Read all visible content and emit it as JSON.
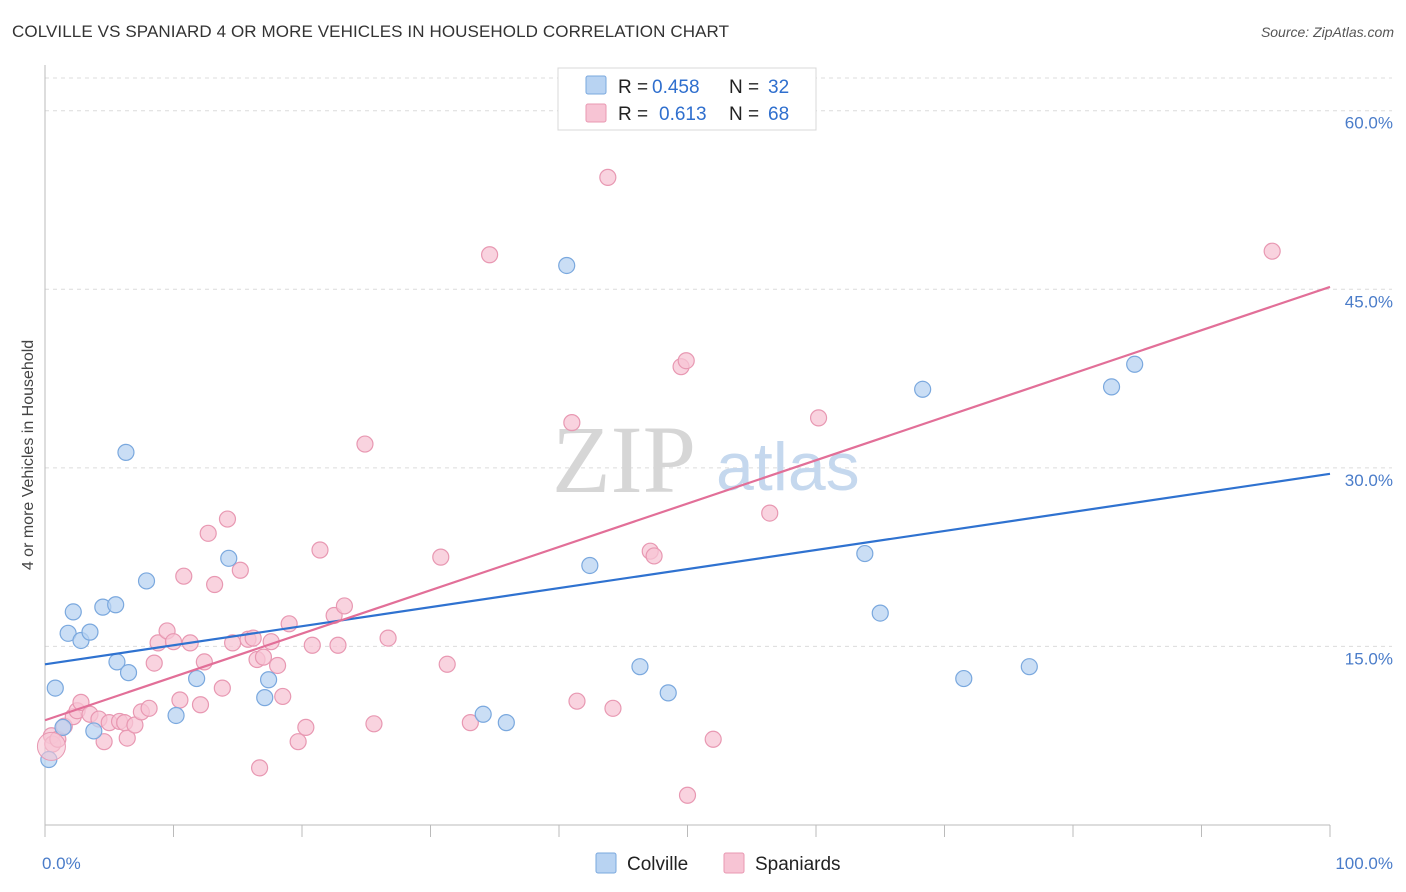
{
  "header": {
    "title": "COLVILLE VS SPANIARD 4 OR MORE VEHICLES IN HOUSEHOLD CORRELATION CHART",
    "source": "Source: ZipAtlas.com"
  },
  "legend": {
    "rows": [
      {
        "r_label": "R =",
        "r_value": "0.458",
        "n_label": "N =",
        "n_value": "32"
      },
      {
        "r_label": "R =",
        "r_value": "0.613",
        "n_label": "N =",
        "n_value": "68"
      }
    ]
  },
  "bottom_legend": [
    "Colville",
    "Spaniards"
  ],
  "watermark": {
    "zip": "ZIP",
    "atlas": "atlas"
  },
  "colors": {
    "colville_fill": "#b8d3f2",
    "colville_stroke": "#7aa8de",
    "colville_line": "#2f72d0",
    "spaniards_fill": "#f7c4d4",
    "spaniards_stroke": "#e898b2",
    "spaniards_line": "#e26f98",
    "tick_label": "#4a7cc9",
    "grid": "#dcdcdc"
  },
  "chart_data": {
    "type": "scatter",
    "title": "COLVILLE VS SPANIARD 4 OR MORE VEHICLES IN HOUSEHOLD CORRELATION CHART",
    "xlabel": "",
    "ylabel": "4 or more Vehicles in Household",
    "xlim": [
      0,
      100
    ],
    "ylim": [
      0,
      63
    ],
    "x_tick_labels": [
      "0.0%",
      "100.0%"
    ],
    "y_ticks": [
      15,
      30,
      45,
      60
    ],
    "y_tick_labels": [
      "15.0%",
      "30.0%",
      "45.0%",
      "60.0%"
    ],
    "grid": true,
    "legend_position": "top-center",
    "series": [
      {
        "name": "Colville",
        "r": 0.458,
        "n": 32,
        "trend": {
          "x": [
            0,
            100
          ],
          "y": [
            13.5,
            29.5
          ]
        },
        "points": [
          [
            0.3,
            5.5
          ],
          [
            0.8,
            11.5
          ],
          [
            1.4,
            8.2
          ],
          [
            1.8,
            16.1
          ],
          [
            2.2,
            17.9
          ],
          [
            2.8,
            15.5
          ],
          [
            3.5,
            16.2
          ],
          [
            3.8,
            7.9
          ],
          [
            4.5,
            18.3
          ],
          [
            5.5,
            18.5
          ],
          [
            5.6,
            13.7
          ],
          [
            6.5,
            12.8
          ],
          [
            6.3,
            31.3
          ],
          [
            7.9,
            20.5
          ],
          [
            10.2,
            9.2
          ],
          [
            11.8,
            12.3
          ],
          [
            14.3,
            22.4
          ],
          [
            17.1,
            10.7
          ],
          [
            17.4,
            12.2
          ],
          [
            34.1,
            9.3
          ],
          [
            35.9,
            8.6
          ],
          [
            40.6,
            47.0
          ],
          [
            42.4,
            21.8
          ],
          [
            46.3,
            13.3
          ],
          [
            48.5,
            11.1
          ],
          [
            63.8,
            22.8
          ],
          [
            65.0,
            17.8
          ],
          [
            68.3,
            36.6
          ],
          [
            71.5,
            12.3
          ],
          [
            76.6,
            13.3
          ],
          [
            83.0,
            36.8
          ],
          [
            84.8,
            38.7
          ]
        ]
      },
      {
        "name": "Spaniards",
        "r": 0.613,
        "n": 68,
        "trend": {
          "x": [
            0,
            100
          ],
          "y": [
            8.8,
            45.2
          ]
        },
        "points": [
          [
            0.5,
            7.5
          ],
          [
            0.6,
            6.8
          ],
          [
            1.0,
            7.2
          ],
          [
            1.5,
            8.3
          ],
          [
            2.2,
            9.1
          ],
          [
            2.5,
            9.6
          ],
          [
            2.8,
            10.3
          ],
          [
            3.5,
            9.3
          ],
          [
            4.2,
            8.9
          ],
          [
            4.6,
            7.0
          ],
          [
            5.0,
            8.6
          ],
          [
            5.8,
            8.7
          ],
          [
            6.4,
            7.3
          ],
          [
            6.2,
            8.6
          ],
          [
            7.0,
            8.4
          ],
          [
            7.5,
            9.5
          ],
          [
            8.1,
            9.8
          ],
          [
            8.5,
            13.6
          ],
          [
            8.8,
            15.3
          ],
          [
            9.5,
            16.3
          ],
          [
            10.0,
            15.4
          ],
          [
            10.5,
            10.5
          ],
          [
            10.8,
            20.9
          ],
          [
            11.3,
            15.3
          ],
          [
            12.1,
            10.1
          ],
          [
            12.4,
            13.7
          ],
          [
            12.7,
            24.5
          ],
          [
            13.2,
            20.2
          ],
          [
            13.8,
            11.5
          ],
          [
            14.2,
            25.7
          ],
          [
            14.6,
            15.3
          ],
          [
            15.2,
            21.4
          ],
          [
            15.8,
            15.6
          ],
          [
            16.2,
            15.7
          ],
          [
            16.5,
            13.9
          ],
          [
            17.0,
            14.1
          ],
          [
            17.6,
            15.4
          ],
          [
            18.1,
            13.4
          ],
          [
            18.5,
            10.8
          ],
          [
            19.0,
            16.9
          ],
          [
            19.7,
            7.0
          ],
          [
            20.3,
            8.2
          ],
          [
            20.8,
            15.1
          ],
          [
            21.4,
            23.1
          ],
          [
            22.5,
            17.6
          ],
          [
            22.8,
            15.1
          ],
          [
            23.3,
            18.4
          ],
          [
            24.9,
            32.0
          ],
          [
            25.6,
            8.5
          ],
          [
            26.7,
            15.7
          ],
          [
            30.8,
            22.5
          ],
          [
            31.3,
            13.5
          ],
          [
            33.1,
            8.6
          ],
          [
            34.6,
            47.9
          ],
          [
            41.0,
            33.8
          ],
          [
            41.4,
            10.4
          ],
          [
            43.8,
            54.4
          ],
          [
            44.2,
            9.8
          ],
          [
            47.1,
            23.0
          ],
          [
            47.4,
            22.6
          ],
          [
            49.5,
            38.5
          ],
          [
            49.9,
            39.0
          ],
          [
            50.0,
            2.5
          ],
          [
            52.0,
            7.2
          ],
          [
            56.4,
            26.2
          ],
          [
            60.2,
            34.2
          ],
          [
            95.5,
            48.2
          ],
          [
            16.7,
            4.8
          ]
        ]
      }
    ]
  }
}
